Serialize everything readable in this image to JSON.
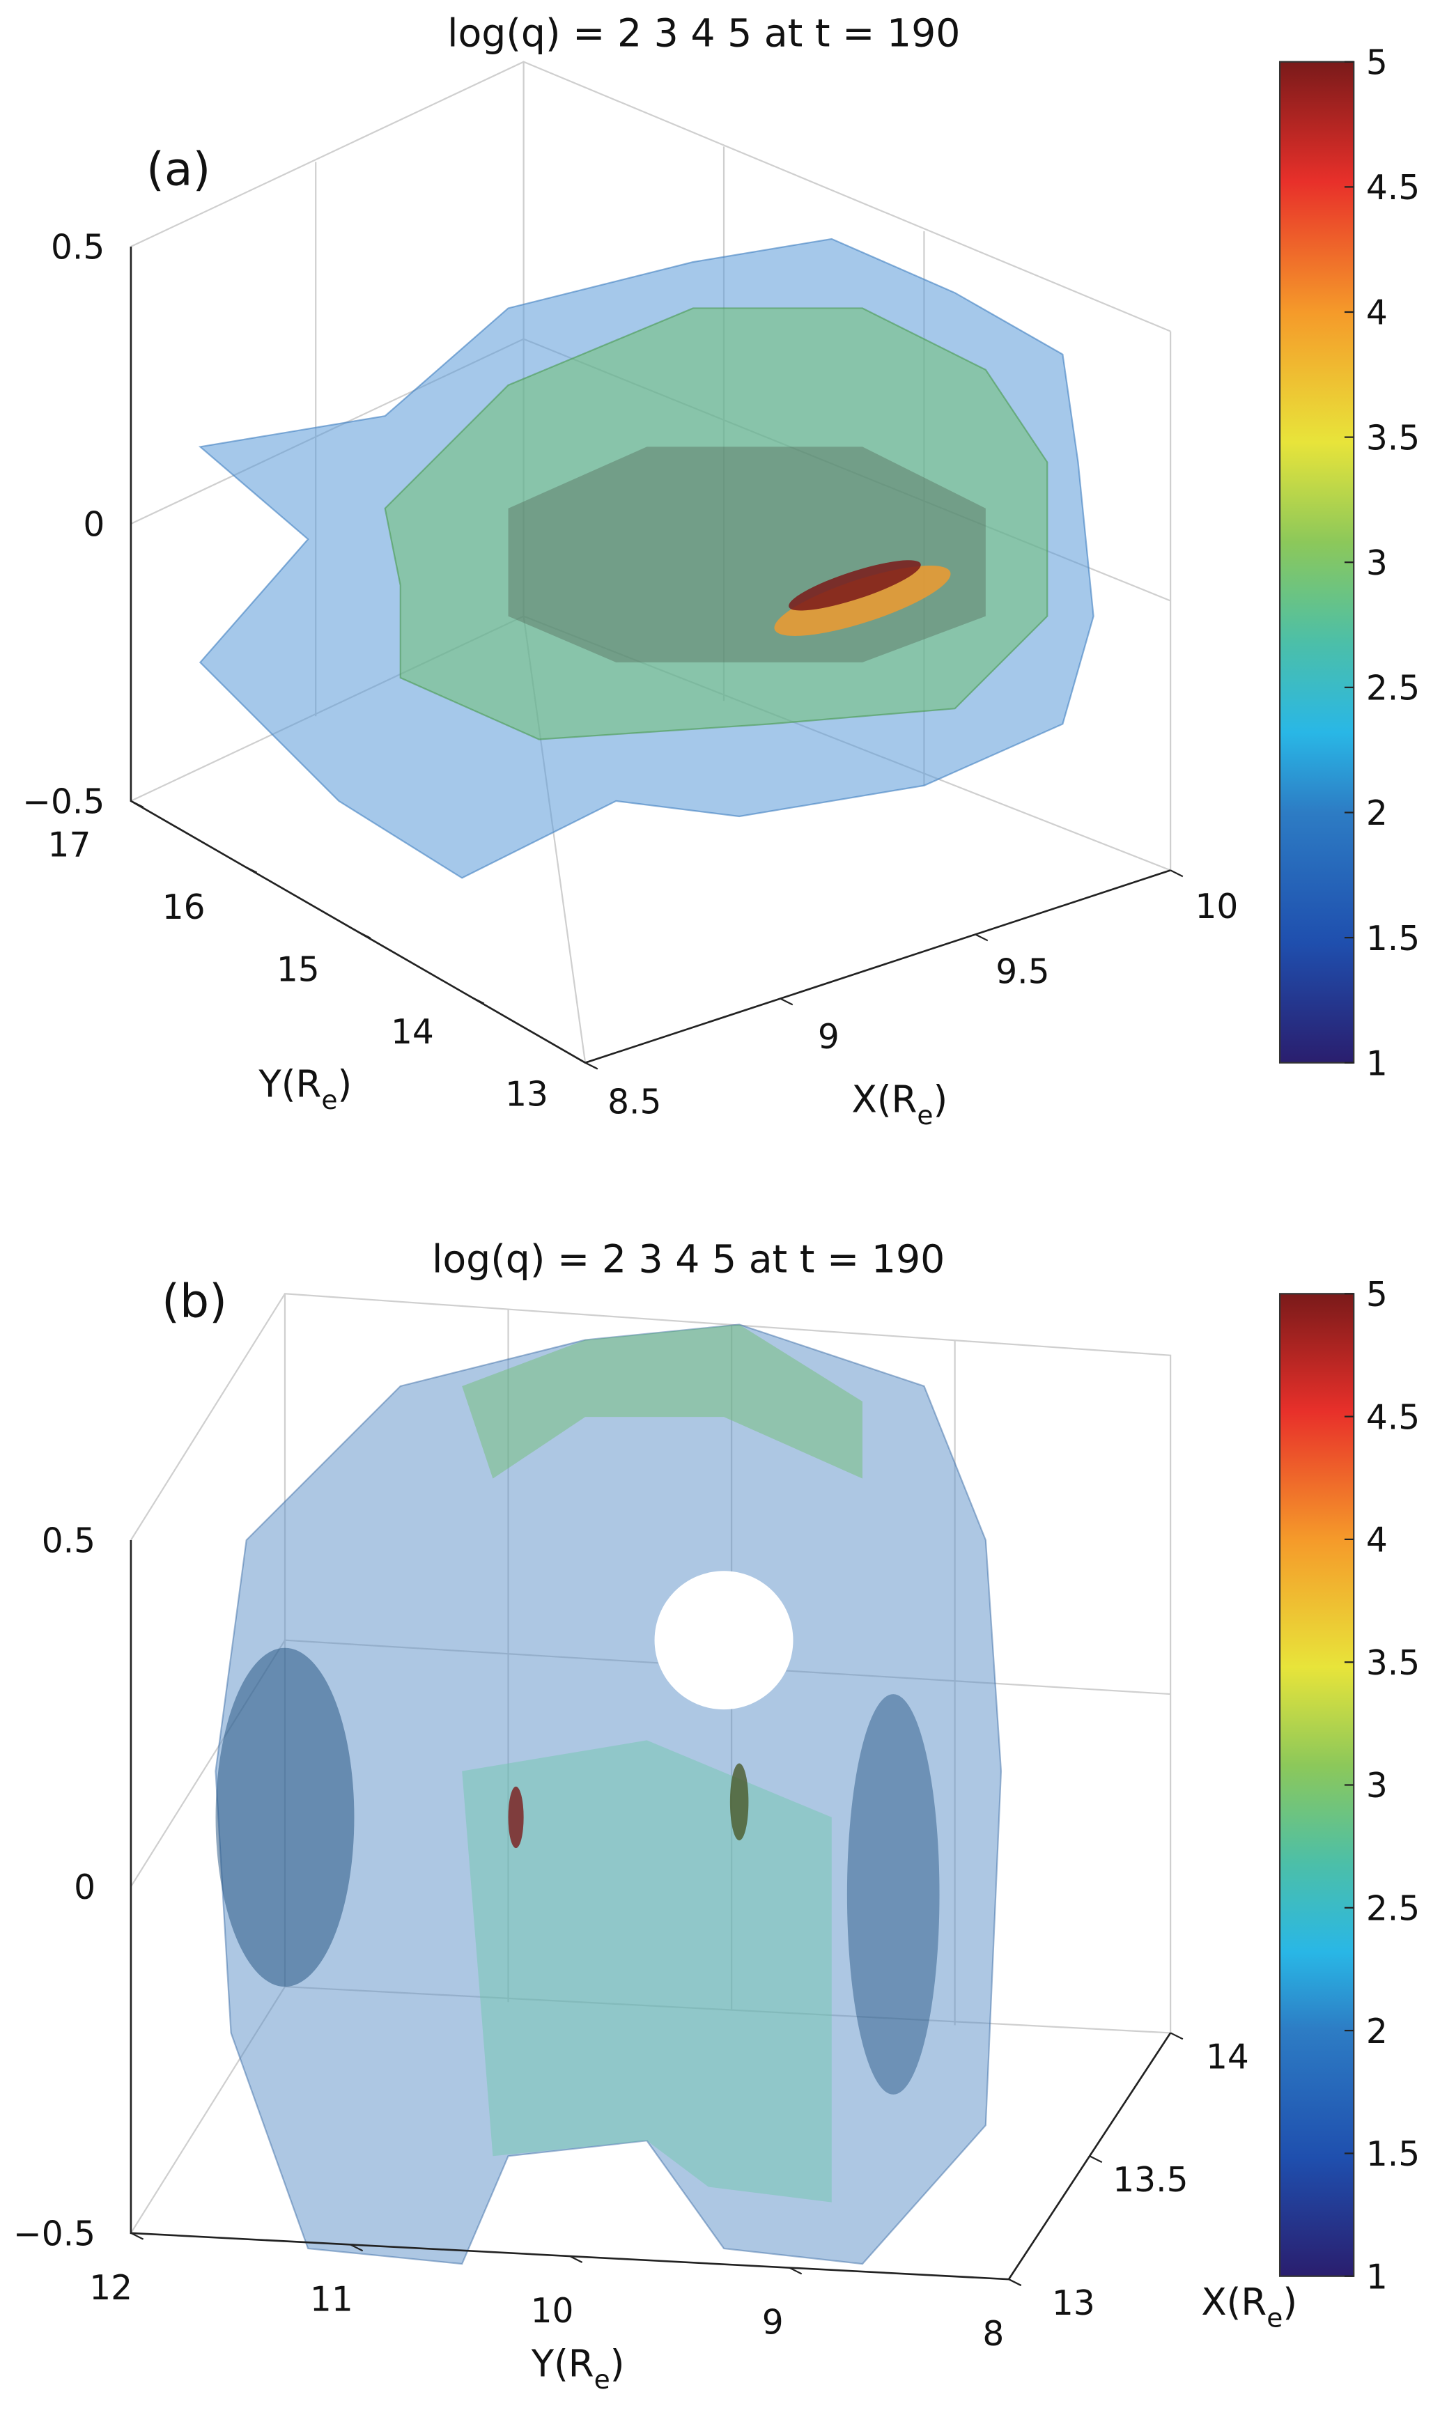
{
  "chart_data": [
    {
      "type": "3d-isosurface",
      "panel_label": "(a)",
      "title": "log(q) = 2  3  4  5  at  t = 190",
      "isosurface_levels": [
        2,
        3,
        4,
        5
      ],
      "time": 190,
      "zlim": [
        -0.5,
        0.5
      ],
      "zticks": [
        "0.5",
        "0",
        "−0.5"
      ],
      "ylabel": "Y(R",
      "ylabel_sub": "e",
      "ylabel_close": ")",
      "yticks": [
        "17",
        "16",
        "15",
        "14",
        "13"
      ],
      "ylim": [
        13,
        17
      ],
      "xlabel": "X(R",
      "xlabel_sub": "e",
      "xlabel_close": ")",
      "xticks": [
        "8.5",
        "9",
        "9.5",
        "10"
      ],
      "xlim": [
        8.5,
        10
      ],
      "colorbar": {
        "min": 1,
        "max": 5,
        "ticks": [
          "1",
          "1.5",
          "2",
          "2.5",
          "3",
          "3.5",
          "4",
          "4.5",
          "5"
        ]
      },
      "grid": true
    },
    {
      "type": "3d-isosurface",
      "panel_label": "(b)",
      "title": "log(q) = 2  3  4  5  at  t = 190",
      "isosurface_levels": [
        2,
        3,
        4,
        5
      ],
      "time": 190,
      "zlim": [
        -0.5,
        0.5
      ],
      "zticks": [
        "0.5",
        "0",
        "−0.5"
      ],
      "ylabel": "Y(R",
      "ylabel_sub": "e",
      "ylabel_close": ")",
      "yticks": [
        "12",
        "11",
        "10",
        "9",
        "8"
      ],
      "ylim": [
        8,
        12
      ],
      "xlabel": "X(R",
      "xlabel_sub": "e",
      "xlabel_close": ")",
      "xticks": [
        "13",
        "13.5",
        "14"
      ],
      "xlim": [
        13,
        14
      ],
      "colorbar": {
        "min": 1,
        "max": 5,
        "ticks": [
          "1",
          "1.5",
          "2",
          "2.5",
          "3",
          "3.5",
          "4",
          "4.5",
          "5"
        ]
      },
      "grid": true
    }
  ],
  "colors": {
    "cmap": [
      "#2a1e6e",
      "#1f4fae",
      "#2d7cc4",
      "#29b7e6",
      "#4cbfa8",
      "#8cc85a",
      "#e8e43a",
      "#f59a2a",
      "#e8302a",
      "#7a1a1a"
    ],
    "level2": "#5b9bd8",
    "level3": "#6cbf6a",
    "level5": "#9a1a1a"
  }
}
